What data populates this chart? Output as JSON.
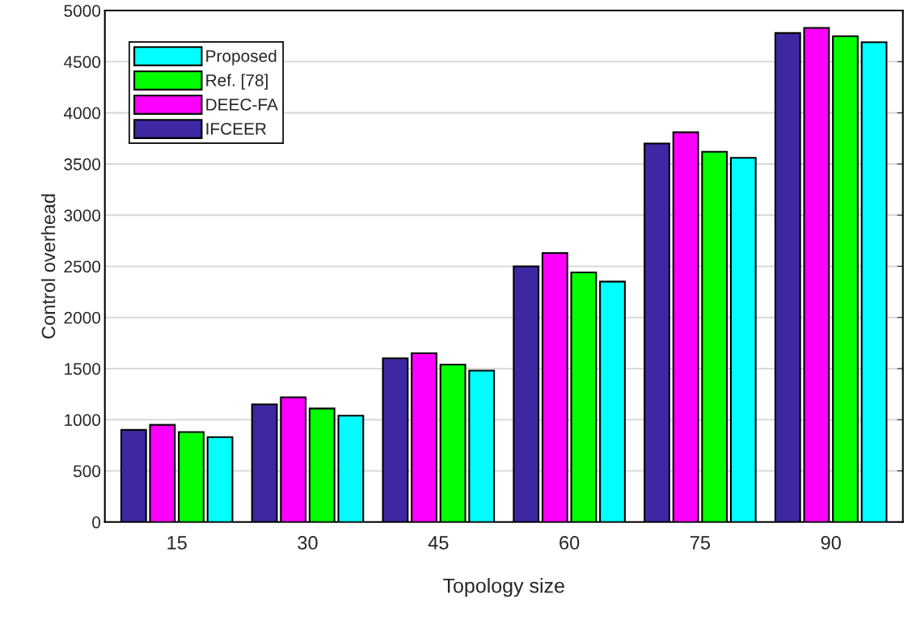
{
  "chart_data": {
    "type": "bar",
    "xlabel": "Topology size",
    "ylabel": "Control overhead",
    "categories": [
      "15",
      "30",
      "45",
      "60",
      "75",
      "90"
    ],
    "series": [
      {
        "name": "IFCEER",
        "color": "#3f27a3",
        "values": [
          900,
          1150,
          1600,
          2500,
          3700,
          4780
        ]
      },
      {
        "name": "DEEC-FA",
        "color": "#ff00ff",
        "values": [
          950,
          1220,
          1650,
          2630,
          3810,
          4830
        ]
      },
      {
        "name": "Ref. [78]",
        "color": "#00ff00",
        "values": [
          880,
          1110,
          1540,
          2440,
          3620,
          4750
        ]
      },
      {
        "name": "Proposed",
        "color": "#00ffff",
        "values": [
          830,
          1040,
          1480,
          2350,
          3560,
          4690
        ]
      }
    ],
    "ylim": [
      0,
      5000
    ],
    "yticks": [
      0,
      500,
      1000,
      1500,
      2000,
      2500,
      3000,
      3500,
      4000,
      4500,
      5000
    ],
    "grid": "y",
    "legend": "top left"
  }
}
